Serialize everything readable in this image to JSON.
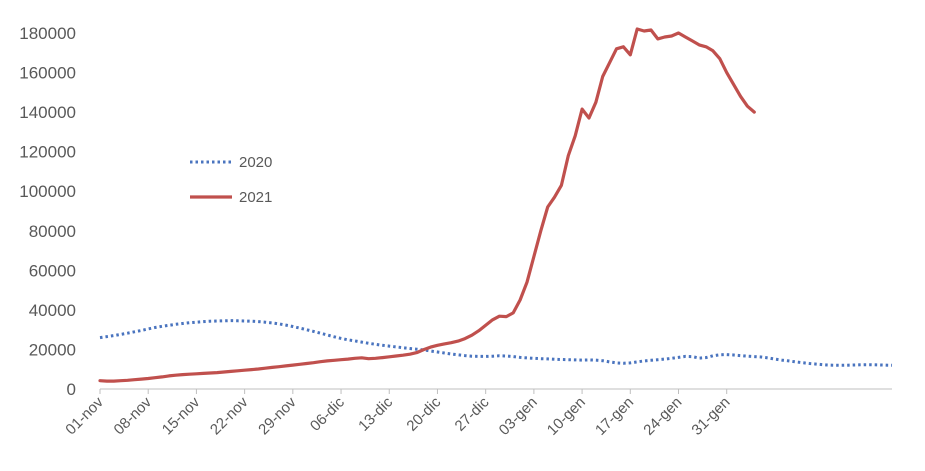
{
  "chart_data": {
    "type": "line",
    "title": "",
    "xlabel": "",
    "ylabel": "",
    "ylim": [
      0,
      180000
    ],
    "y_ticks": [
      0,
      20000,
      40000,
      60000,
      80000,
      100000,
      120000,
      140000,
      160000,
      180000
    ],
    "y_tick_labels": [
      "0",
      "20000",
      "40000",
      "60000",
      "80000",
      "100000",
      "120000",
      "140000",
      "160000",
      "180000"
    ],
    "x_tick_labels": [
      "01-nov",
      "08-nov",
      "15-nov",
      "22-nov",
      "29-nov",
      "06-dic",
      "13-dic",
      "20-dic",
      "27-dic",
      "03-gen",
      "10-gen",
      "17-gen",
      "24-gen",
      "31-gen"
    ],
    "x_tick_index": [
      0,
      7,
      14,
      21,
      28,
      35,
      42,
      49,
      56,
      63,
      70,
      77,
      84,
      91
    ],
    "grid": false,
    "legend_position": "left-middle",
    "series": [
      {
        "name": "2020",
        "color": "#4a74bf",
        "style": "dotted",
        "values": [
          26000,
          26500,
          27000,
          27600,
          28200,
          28900,
          29600,
          30400,
          31100,
          31700,
          32200,
          32700,
          33100,
          33500,
          33800,
          34100,
          34300,
          34400,
          34500,
          34600,
          34500,
          34400,
          34300,
          34100,
          33800,
          33400,
          32900,
          32300,
          31600,
          30800,
          30000,
          29100,
          28200,
          27300,
          26400,
          25600,
          24900,
          24300,
          23700,
          23100,
          22600,
          22100,
          21700,
          21300,
          20900,
          20500,
          20100,
          19700,
          19200,
          18700,
          18200,
          17700,
          17300,
          16900,
          16600,
          16500,
          16500,
          16600,
          16800,
          16700,
          16400,
          16000,
          15700,
          15500,
          15300,
          15200,
          15000,
          14900,
          14800,
          14700,
          14600,
          14700,
          14600,
          14300,
          13700,
          13200,
          13000,
          13200,
          13700,
          14200,
          14500,
          14800,
          15100,
          15500,
          16000,
          16500,
          16400,
          15600,
          15900,
          16800,
          17300,
          17400,
          17200,
          16900,
          16600,
          16400,
          16200,
          15700,
          15100,
          14600,
          14200,
          13700,
          13300,
          12900,
          12600,
          12300,
          12100,
          12000,
          12000,
          12100,
          12200,
          12300,
          12300,
          12200,
          12100,
          12000
        ]
      },
      {
        "name": "2021",
        "color": "#c0504d",
        "style": "solid",
        "values": [
          4200,
          4000,
          4000,
          4200,
          4400,
          4700,
          5000,
          5300,
          5700,
          6100,
          6600,
          7000,
          7300,
          7500,
          7700,
          7900,
          8100,
          8300,
          8600,
          8900,
          9200,
          9500,
          9800,
          10100,
          10500,
          10900,
          11300,
          11700,
          12100,
          12500,
          12900,
          13300,
          13800,
          14200,
          14500,
          14800,
          15100,
          15500,
          15800,
          15300,
          15500,
          15900,
          16300,
          16700,
          17100,
          17600,
          18400,
          19900,
          21200,
          22100,
          22800,
          23400,
          24200,
          25500,
          27200,
          29500,
          32200,
          35000,
          36800,
          36600,
          38500,
          45000,
          54000,
          67000,
          80000,
          92000,
          97000,
          103000,
          118000,
          128000,
          141500,
          137000,
          145000,
          158000,
          165000,
          172000,
          173000,
          169000,
          182000,
          181000,
          181500,
          177000,
          178000,
          178500,
          180000,
          178000,
          176000,
          174000,
          173000,
          171000,
          167000,
          160000,
          154000,
          148000,
          143000,
          140000
        ]
      }
    ]
  }
}
